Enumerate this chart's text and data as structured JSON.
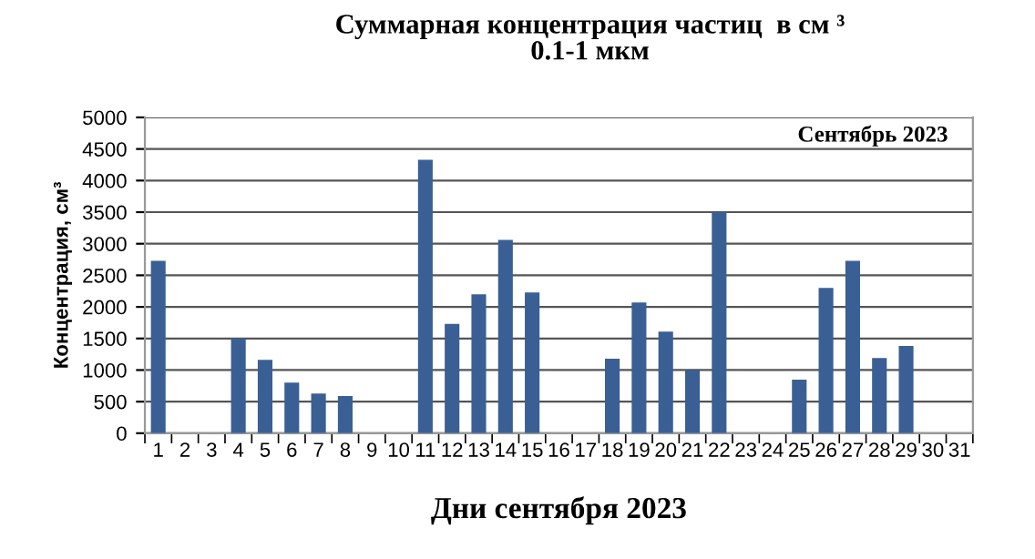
{
  "chart_data": {
    "type": "bar",
    "title": "Суммарная концентрация частиц  в см ³\n0.1-1 мкм",
    "xlabel": "Дни сентября 2023",
    "ylabel": "Концентрация, см³",
    "annotations": [
      "Сентябрь 2023"
    ],
    "categories": [
      "1",
      "2",
      "3",
      "4",
      "5",
      "6",
      "7",
      "8",
      "9",
      "10",
      "11",
      "12",
      "13",
      "14",
      "15",
      "16",
      "17",
      "18",
      "19",
      "20",
      "21",
      "22",
      "23",
      "24",
      "25",
      "26",
      "27",
      "28",
      "29",
      "30",
      "31"
    ],
    "values": [
      2730,
      null,
      null,
      1500,
      1160,
      800,
      630,
      590,
      null,
      null,
      4330,
      1730,
      2200,
      3060,
      2230,
      null,
      null,
      1180,
      2070,
      1610,
      1000,
      3500,
      null,
      null,
      850,
      2300,
      2730,
      1190,
      1380,
      null,
      null
    ],
    "color": "#3a5f94",
    "ylim": [
      0,
      5000
    ],
    "yticks": [
      0,
      500,
      1000,
      1500,
      2000,
      2500,
      3000,
      3500,
      4000,
      4500,
      5000
    ],
    "grid": "y",
    "legend": false
  }
}
